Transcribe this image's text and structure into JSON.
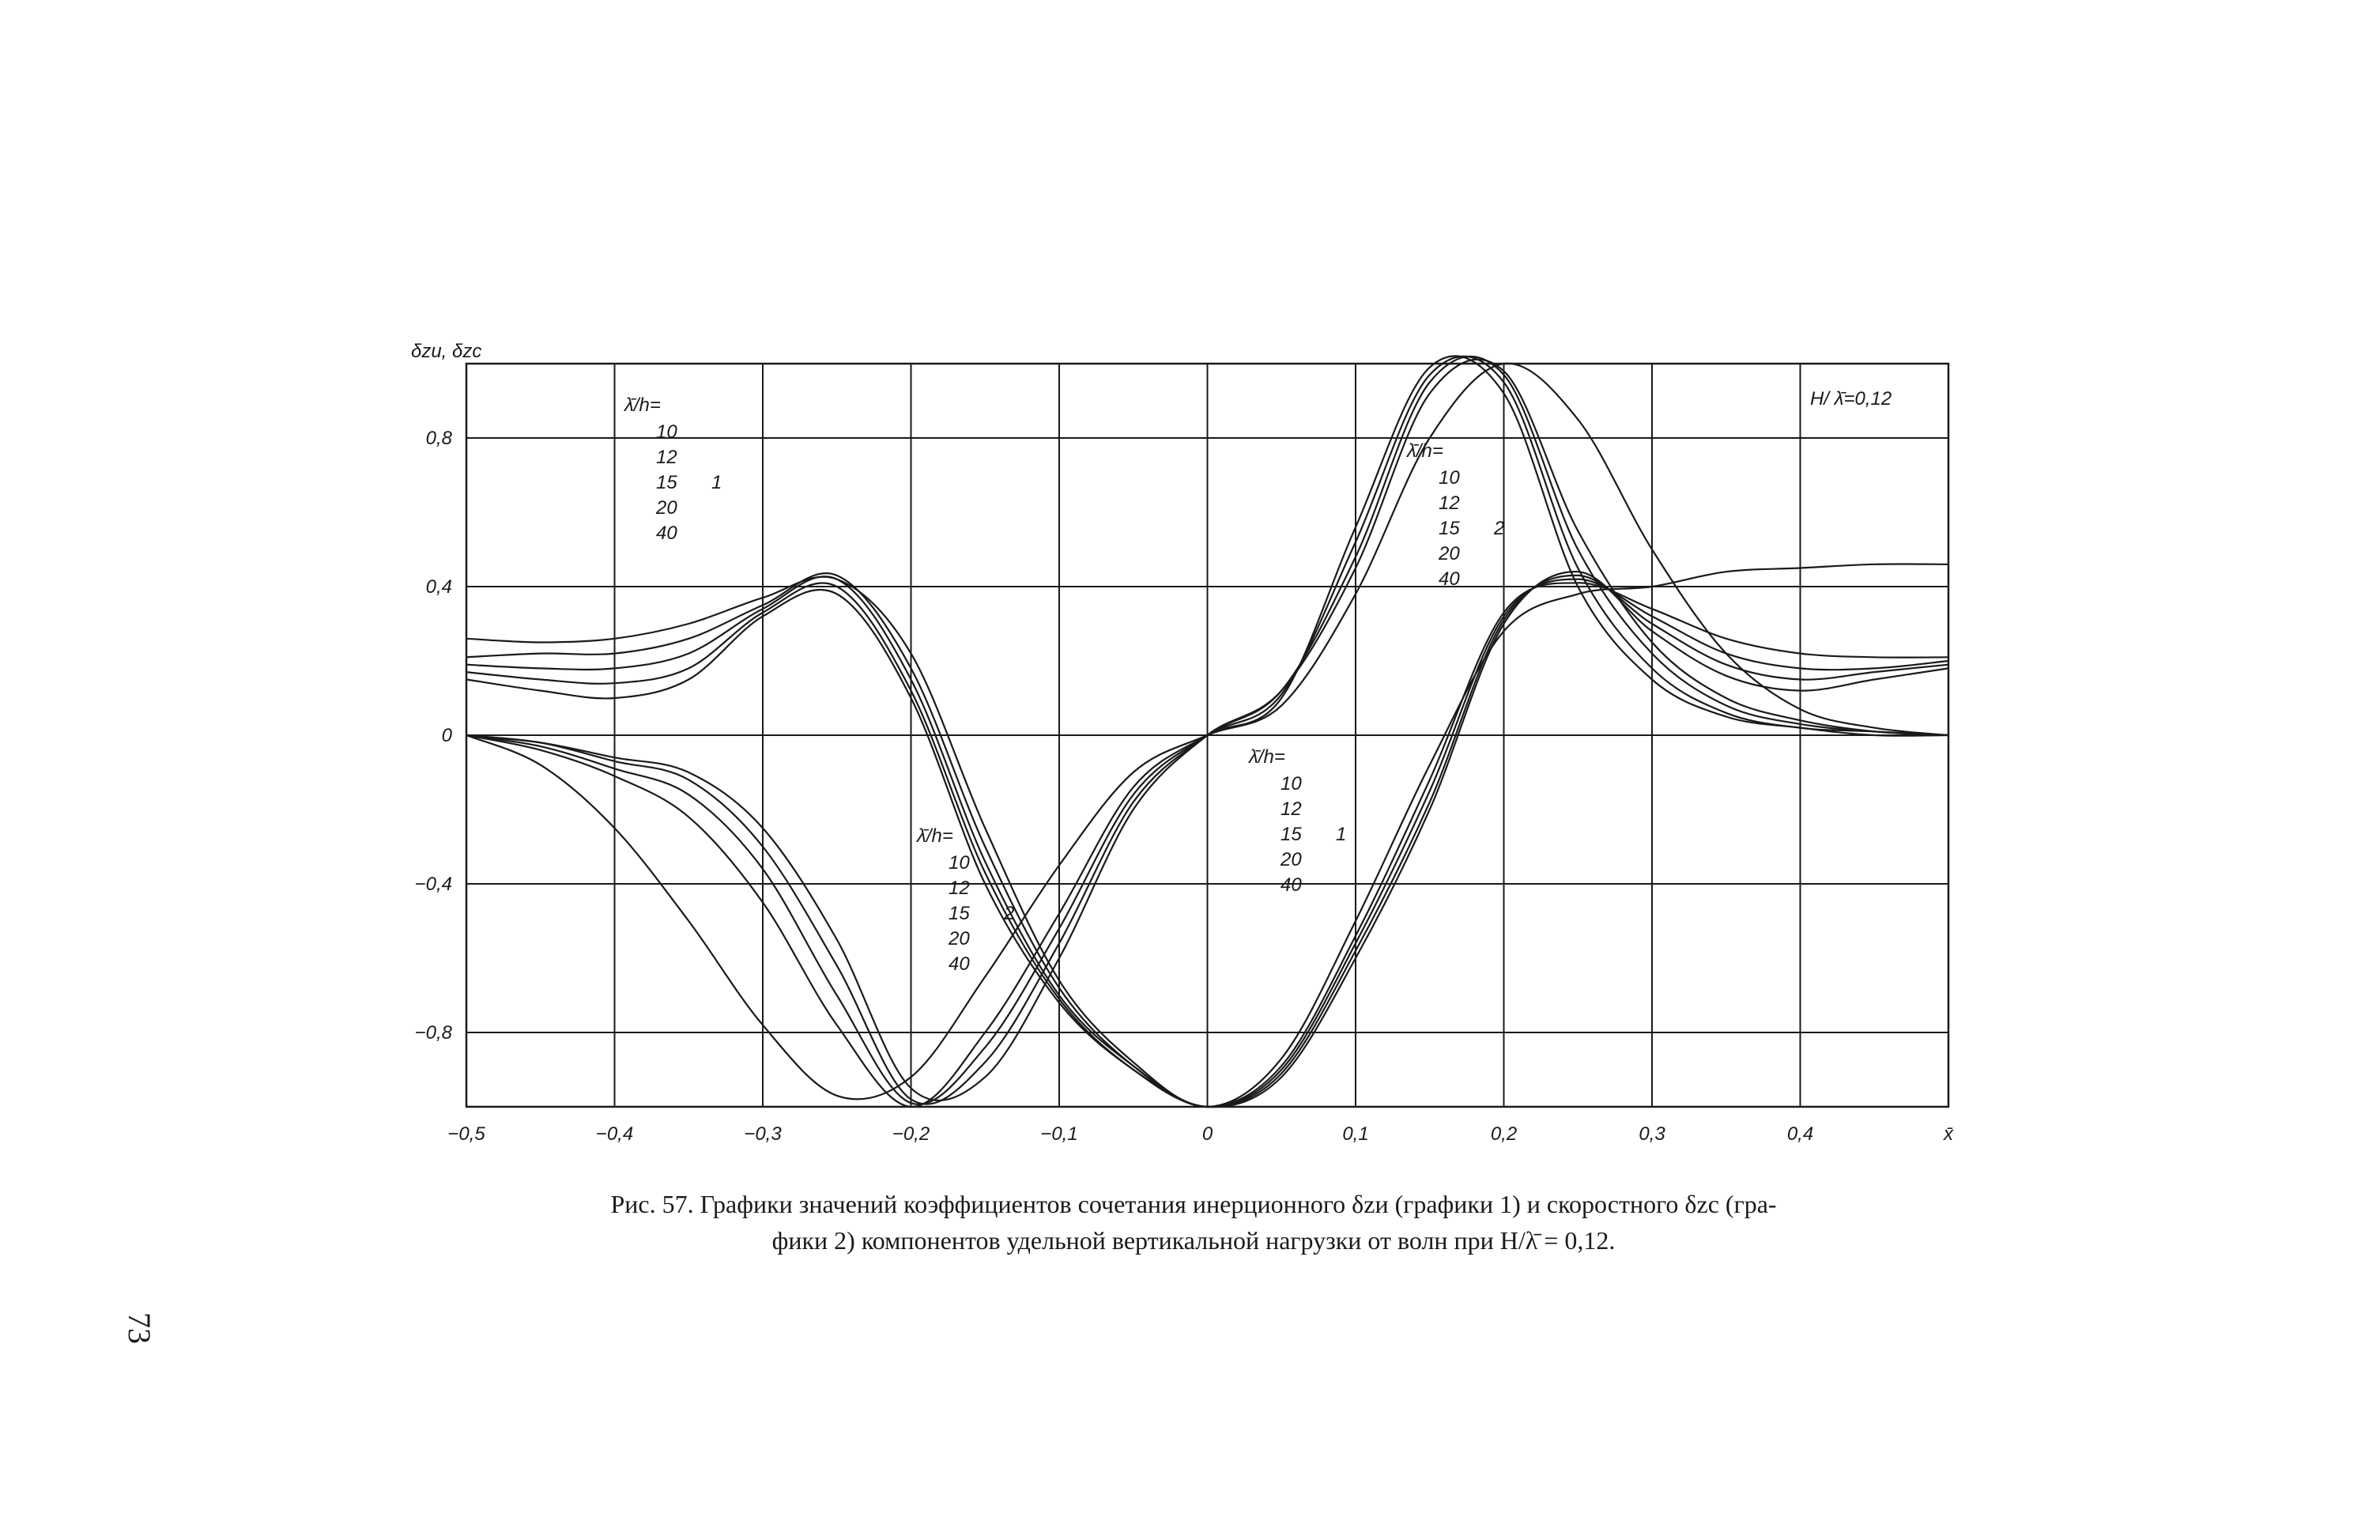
{
  "chart_data": {
    "type": "line",
    "ylabel": "δzи, δzc",
    "xlabel": "x̄",
    "annotation_top_right": "H/ λ̄=0,12",
    "xlim": [
      -0.5,
      0.5
    ],
    "ylim": [
      -1.0,
      1.0
    ],
    "x_ticks": [
      "−0,5",
      "−0,4",
      "−0,3",
      "−0,2",
      "−0,1",
      "0",
      "0,1",
      "0,2",
      "0,3",
      "0,4",
      "x̄"
    ],
    "y_ticks": [
      "0,8",
      "0,4",
      "0",
      "−0,4",
      "−0,8"
    ],
    "grid": true,
    "legend_blocks": [
      {
        "header": "λ̄/h=",
        "values": [
          "10",
          "12",
          "15",
          "20",
          "40"
        ],
        "group": "1"
      },
      {
        "header": "λ̄/h=",
        "values": [
          "10",
          "12",
          "15",
          "20",
          "40"
        ],
        "group": "2"
      },
      {
        "header": "λ̄/h=",
        "values": [
          "10",
          "12",
          "15",
          "20",
          "40"
        ],
        "group": "1"
      },
      {
        "header": "λ̄/h=",
        "values": [
          "10",
          "12",
          "15",
          "20",
          "40"
        ],
        "group": "2"
      }
    ],
    "series": [
      {
        "group": "1",
        "lambda_h": "10",
        "x": [
          -0.5,
          -0.45,
          -0.4,
          -0.35,
          -0.3,
          -0.25,
          -0.2,
          -0.15,
          -0.1,
          -0.05,
          0,
          0.05,
          0.1,
          0.15,
          0.2,
          0.25,
          0.3,
          0.35,
          0.4,
          0.45,
          0.5
        ],
        "y": [
          0.15,
          0.12,
          0.1,
          0.15,
          0.32,
          0.38,
          0.1,
          -0.4,
          -0.72,
          -0.9,
          -1.0,
          -0.92,
          -0.6,
          -0.2,
          0.3,
          0.44,
          0.28,
          0.16,
          0.12,
          0.15,
          0.18
        ]
      },
      {
        "group": "1",
        "lambda_h": "12",
        "x": [
          -0.5,
          -0.45,
          -0.4,
          -0.35,
          -0.3,
          -0.25,
          -0.2,
          -0.15,
          -0.1,
          -0.05,
          0,
          0.05,
          0.1,
          0.15,
          0.2,
          0.25,
          0.3,
          0.35,
          0.4,
          0.45,
          0.5
        ],
        "y": [
          0.17,
          0.15,
          0.14,
          0.18,
          0.33,
          0.4,
          0.12,
          -0.37,
          -0.71,
          -0.9,
          -1.0,
          -0.91,
          -0.58,
          -0.18,
          0.31,
          0.43,
          0.3,
          0.19,
          0.15,
          0.17,
          0.19
        ]
      },
      {
        "group": "1",
        "lambda_h": "15",
        "x": [
          -0.5,
          -0.45,
          -0.4,
          -0.35,
          -0.3,
          -0.25,
          -0.2,
          -0.15,
          -0.1,
          -0.05,
          0,
          0.05,
          0.1,
          0.15,
          0.2,
          0.25,
          0.3,
          0.35,
          0.4,
          0.45,
          0.5
        ],
        "y": [
          0.19,
          0.18,
          0.18,
          0.22,
          0.34,
          0.42,
          0.15,
          -0.34,
          -0.7,
          -0.89,
          -1.0,
          -0.9,
          -0.56,
          -0.15,
          0.32,
          0.42,
          0.32,
          0.22,
          0.18,
          0.18,
          0.2
        ]
      },
      {
        "group": "1",
        "lambda_h": "20",
        "x": [
          -0.5,
          -0.45,
          -0.4,
          -0.35,
          -0.3,
          -0.25,
          -0.2,
          -0.15,
          -0.1,
          -0.05,
          0,
          0.05,
          0.1,
          0.15,
          0.2,
          0.25,
          0.3,
          0.35,
          0.4,
          0.45,
          0.5
        ],
        "y": [
          0.21,
          0.22,
          0.22,
          0.26,
          0.35,
          0.43,
          0.18,
          -0.3,
          -0.68,
          -0.89,
          -1.0,
          -0.89,
          -0.54,
          -0.12,
          0.33,
          0.41,
          0.34,
          0.26,
          0.22,
          0.21,
          0.21
        ]
      },
      {
        "group": "1",
        "lambda_h": "40",
        "x": [
          -0.5,
          -0.45,
          -0.4,
          -0.35,
          -0.3,
          -0.25,
          -0.2,
          -0.15,
          -0.1,
          -0.05,
          0,
          0.05,
          0.1,
          0.15,
          0.2,
          0.25,
          0.3,
          0.35,
          0.4,
          0.45,
          0.5
        ],
        "y": [
          0.26,
          0.25,
          0.26,
          0.3,
          0.37,
          0.42,
          0.22,
          -0.25,
          -0.66,
          -0.88,
          -1.0,
          -0.87,
          -0.5,
          -0.08,
          0.28,
          0.38,
          0.4,
          0.44,
          0.45,
          0.46,
          0.46
        ]
      },
      {
        "group": "2",
        "lambda_h": "10",
        "x": [
          -0.5,
          -0.45,
          -0.4,
          -0.35,
          -0.3,
          -0.25,
          -0.2,
          -0.15,
          -0.1,
          -0.05,
          0,
          0.05,
          0.1,
          0.15,
          0.2,
          0.25,
          0.3,
          0.35,
          0.4,
          0.45,
          0.5
        ],
        "y": [
          0,
          -0.02,
          -0.06,
          -0.1,
          -0.25,
          -0.55,
          -0.95,
          -0.92,
          -0.6,
          -0.2,
          0,
          0.12,
          0.45,
          0.92,
          0.98,
          0.55,
          0.25,
          0.1,
          0.04,
          0.01,
          0
        ]
      },
      {
        "group": "2",
        "lambda_h": "12",
        "x": [
          -0.5,
          -0.45,
          -0.4,
          -0.35,
          -0.3,
          -0.25,
          -0.2,
          -0.15,
          -0.1,
          -0.05,
          0,
          0.05,
          0.1,
          0.15,
          0.2,
          0.25,
          0.3,
          0.35,
          0.4,
          0.45,
          0.5
        ],
        "y": [
          0,
          -0.02,
          -0.07,
          -0.12,
          -0.3,
          -0.62,
          -0.98,
          -0.88,
          -0.56,
          -0.18,
          0,
          0.12,
          0.48,
          0.95,
          0.97,
          0.5,
          0.22,
          0.08,
          0.03,
          0.01,
          0
        ]
      },
      {
        "group": "2",
        "lambda_h": "15",
        "x": [
          -0.5,
          -0.45,
          -0.4,
          -0.35,
          -0.3,
          -0.25,
          -0.2,
          -0.15,
          -0.1,
          -0.05,
          0,
          0.05,
          0.1,
          0.15,
          0.2,
          0.25,
          0.3,
          0.35,
          0.4,
          0.45,
          0.5
        ],
        "y": [
          0,
          -0.03,
          -0.09,
          -0.16,
          -0.36,
          -0.7,
          -0.99,
          -0.84,
          -0.52,
          -0.16,
          0,
          0.11,
          0.52,
          0.97,
          0.95,
          0.45,
          0.18,
          0.06,
          0.02,
          0.01,
          0
        ]
      },
      {
        "group": "2",
        "lambda_h": "20",
        "x": [
          -0.5,
          -0.45,
          -0.4,
          -0.35,
          -0.3,
          -0.25,
          -0.2,
          -0.15,
          -0.1,
          -0.05,
          0,
          0.05,
          0.1,
          0.15,
          0.2,
          0.25,
          0.3,
          0.35,
          0.4,
          0.45,
          0.5
        ],
        "y": [
          0,
          -0.04,
          -0.11,
          -0.22,
          -0.45,
          -0.78,
          -1.0,
          -0.8,
          -0.48,
          -0.14,
          0,
          0.1,
          0.56,
          0.99,
          0.92,
          0.4,
          0.15,
          0.05,
          0.02,
          0.0,
          0
        ]
      },
      {
        "group": "2",
        "lambda_h": "40",
        "x": [
          -0.5,
          -0.45,
          -0.4,
          -0.35,
          -0.3,
          -0.25,
          -0.2,
          -0.15,
          -0.1,
          -0.05,
          0,
          0.05,
          0.1,
          0.15,
          0.2,
          0.25,
          0.3,
          0.35,
          0.4,
          0.45,
          0.5
        ],
        "y": [
          0,
          -0.08,
          -0.25,
          -0.5,
          -0.78,
          -0.97,
          -0.92,
          -0.65,
          -0.35,
          -0.1,
          0,
          0.08,
          0.38,
          0.8,
          1.0,
          0.85,
          0.5,
          0.22,
          0.07,
          0.02,
          0
        ]
      }
    ]
  },
  "caption": {
    "line1": "Рис. 57. Графики значений коэффициентов сочетания инерционного δzи (графики 1) и скоростного δzc (гра-",
    "line2": "фики 2) компонентов удельной вертикальной нагрузки от волн при  H/λ̄ = 0,12."
  },
  "page_number": "73"
}
